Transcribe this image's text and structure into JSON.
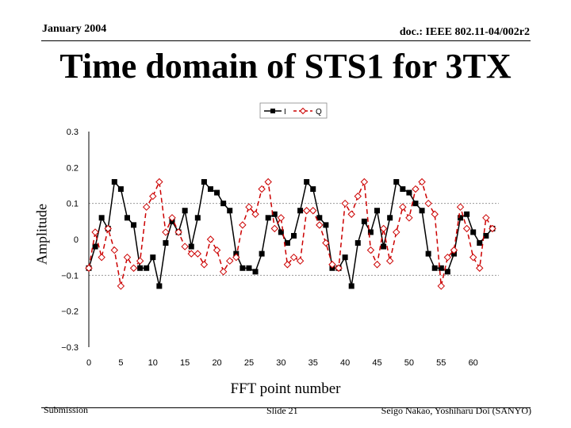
{
  "header": {
    "date": "January 2004",
    "doc_id": "doc.: IEEE 802.11-04/002r2"
  },
  "slide_title": "Time domain of STS1 for 3TX",
  "footer": {
    "left": "Submission",
    "center": "Slide 21",
    "right": "Seigo Nakao, Yoshiharu Doi (SANYO)"
  },
  "colors": {
    "series_i": "#000000",
    "series_q": "#cc0000",
    "gridline": "#999999"
  },
  "chart_data": {
    "type": "line",
    "title": "Time domain of STS1 for 3TX",
    "xlabel": "FFT point number",
    "ylabel": "Amplitude",
    "xlim": [
      0,
      64
    ],
    "ylim": [
      -0.3,
      0.3
    ],
    "x_ticks": [
      "0",
      "5",
      "10",
      "15",
      "20",
      "25",
      "30",
      "35",
      "40",
      "45",
      "50",
      "55",
      "60"
    ],
    "y_ticks": [
      "0.3",
      "0.2",
      "0.1",
      "0",
      "−0.1",
      "−0.2",
      "−0.3"
    ],
    "legend_position": "top",
    "x": [
      0,
      1,
      2,
      3,
      4,
      5,
      6,
      7,
      8,
      9,
      10,
      11,
      12,
      13,
      14,
      15,
      16,
      17,
      18,
      19,
      20,
      21,
      22,
      23,
      24,
      25,
      26,
      27,
      28,
      29,
      30,
      31,
      32,
      33,
      34,
      35,
      36,
      37,
      38,
      39,
      40,
      41,
      42,
      43,
      44,
      45,
      46,
      47,
      48,
      49,
      50,
      51,
      52,
      53,
      54,
      55,
      56,
      57,
      58,
      59,
      60,
      61,
      62,
      63
    ],
    "series": [
      {
        "name": "I",
        "marker": "square",
        "line": "solid",
        "values": [
          -0.08,
          -0.02,
          0.06,
          0.03,
          0.16,
          0.14,
          0.06,
          0.04,
          -0.08,
          -0.08,
          -0.05,
          -0.13,
          -0.01,
          0.05,
          0.02,
          0.08,
          -0.02,
          0.06,
          0.16,
          0.14,
          0.13,
          0.1,
          0.08,
          -0.04,
          -0.08,
          -0.08,
          -0.09,
          -0.04,
          0.06,
          0.07,
          0.02,
          -0.01,
          0.01,
          0.08,
          0.16,
          0.14,
          0.06,
          0.04,
          -0.08,
          -0.08,
          -0.05,
          -0.13,
          -0.01,
          0.05,
          0.02,
          0.08,
          -0.02,
          0.06,
          0.16,
          0.14,
          0.13,
          0.1,
          0.08,
          -0.04,
          -0.08,
          -0.08,
          -0.09,
          -0.04,
          0.06,
          0.07,
          0.02,
          -0.01,
          0.01,
          0.03
        ]
      },
      {
        "name": "Q",
        "marker": "diamond",
        "line": "dashed",
        "values": [
          -0.08,
          0.02,
          -0.05,
          0.03,
          -0.03,
          -0.13,
          -0.05,
          -0.08,
          -0.06,
          0.09,
          0.12,
          0.16,
          0.02,
          0.06,
          0.02,
          -0.02,
          -0.04,
          -0.04,
          -0.07,
          0.0,
          -0.03,
          -0.09,
          -0.06,
          -0.05,
          0.04,
          0.09,
          0.07,
          0.14,
          0.16,
          0.03,
          0.06,
          -0.07,
          -0.05,
          -0.06,
          0.08,
          0.08,
          0.04,
          -0.01,
          -0.07,
          -0.08,
          0.1,
          0.07,
          0.12,
          0.16,
          -0.03,
          -0.07,
          0.03,
          -0.06,
          0.02,
          0.09,
          0.06,
          0.14,
          0.16,
          0.1,
          0.07,
          -0.13,
          -0.05,
          -0.03,
          0.09,
          0.03,
          -0.05,
          -0.08,
          0.06,
          0.03
        ]
      }
    ]
  }
}
